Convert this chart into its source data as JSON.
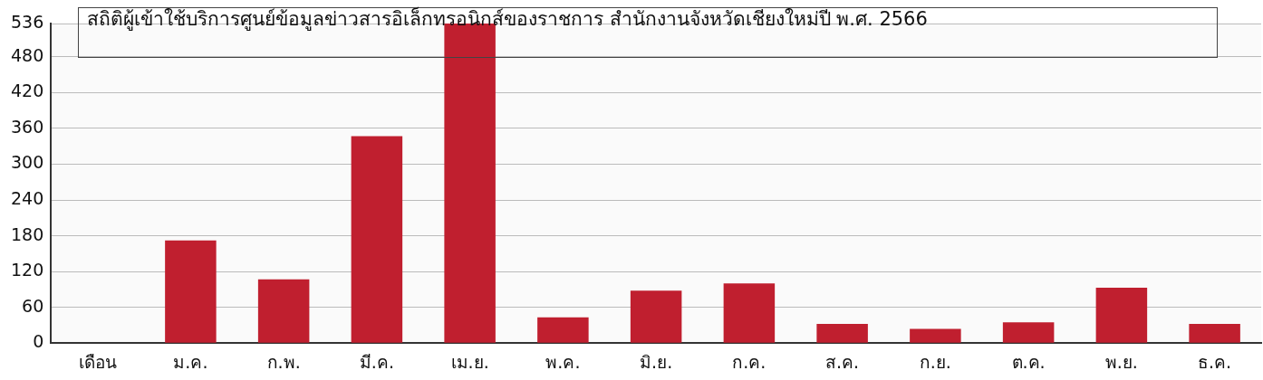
{
  "chart_data": {
    "type": "bar",
    "title": "สถิติผู้เข้าใช้บริการศูนย์ข้อมูลข่าวสารอิเล็กทรอนิกส์ของราชการ สำนักงานจังหวัดเชียงใหม่ปี พ.ศ. 2566",
    "categories": [
      "เดือน",
      "ม.ค.",
      "ก.พ.",
      "มี.ค.",
      "เม.ย.",
      "พ.ค.",
      "มิ.ย.",
      "ก.ค.",
      "ส.ค.",
      "ก.ย.",
      "ต.ค.",
      "พ.ย.",
      "ธ.ค."
    ],
    "values": [
      null,
      172,
      107,
      347,
      536,
      43,
      88,
      100,
      32,
      24,
      35,
      93,
      32
    ],
    "color": "#c01f2f",
    "ylim": [
      0,
      536
    ],
    "yticks": [
      0,
      60,
      120,
      180,
      240,
      300,
      360,
      420,
      480,
      536
    ],
    "grid": "y"
  }
}
